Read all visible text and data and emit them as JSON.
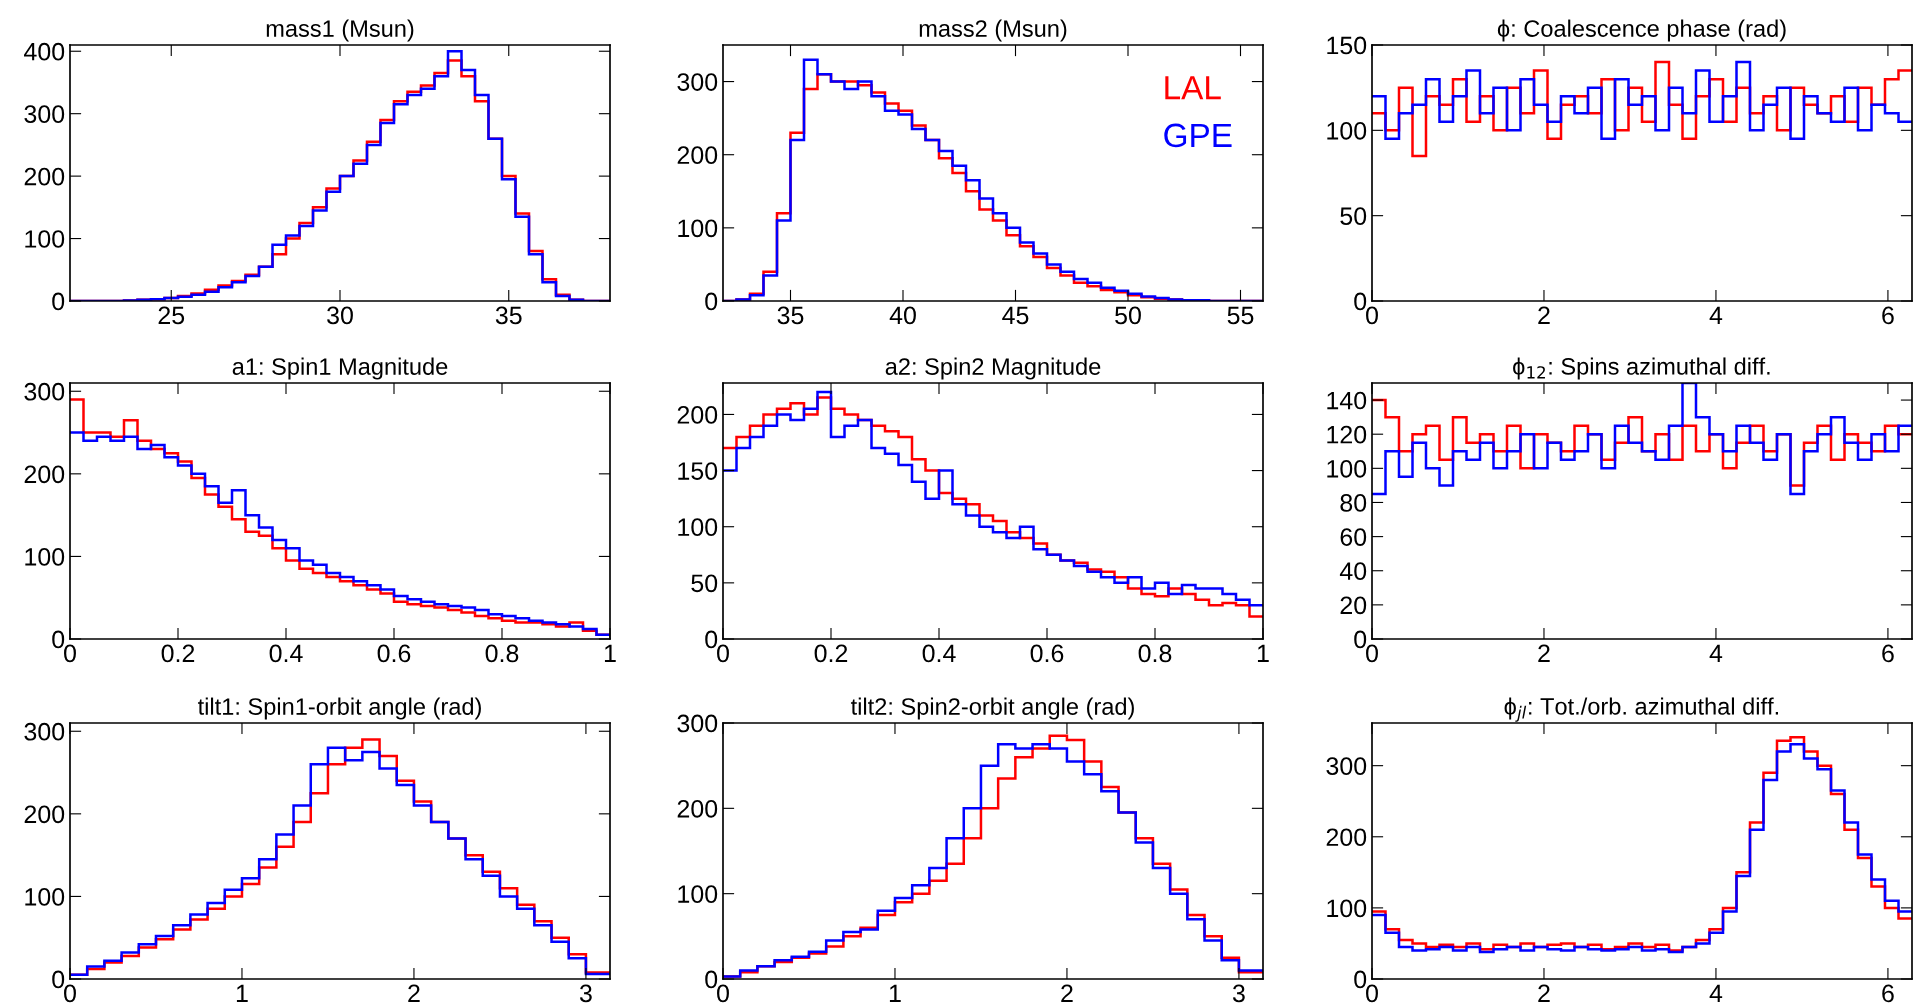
{
  "chart_data": [
    {
      "type": "histogram",
      "title": "mass1 (Msun)",
      "bins": [
        22,
        22.4,
        22.8,
        23.2,
        23.6,
        24,
        24.4,
        24.8,
        25.2,
        25.6,
        26,
        26.4,
        26.8,
        27.2,
        27.6,
        28,
        28.4,
        28.8,
        29.2,
        29.6,
        30,
        30.4,
        30.8,
        31.2,
        31.6,
        32,
        32.4,
        32.8,
        33.2,
        33.6,
        34,
        34.4,
        34.8,
        35.2,
        35.6,
        36,
        36.4,
        36.8,
        37.2,
        37.6,
        38
      ],
      "xlim": [
        22,
        38
      ],
      "xticks": [
        25,
        30,
        35
      ],
      "ylim": [
        0,
        410
      ],
      "yticks": [
        0,
        100,
        200,
        300,
        400
      ],
      "series": [
        {
          "color": "#ff0000",
          "values": [
            0,
            0,
            0,
            0,
            1,
            2,
            3,
            5,
            8,
            12,
            18,
            25,
            32,
            42,
            55,
            75,
            100,
            125,
            150,
            180,
            200,
            225,
            255,
            290,
            320,
            335,
            345,
            365,
            385,
            360,
            320,
            260,
            200,
            140,
            80,
            35,
            10,
            2,
            0,
            0
          ]
        },
        {
          "color": "#0000ff",
          "values": [
            0,
            0,
            0,
            0,
            1,
            2,
            3,
            5,
            7,
            10,
            15,
            22,
            30,
            40,
            55,
            90,
            105,
            120,
            145,
            175,
            200,
            220,
            250,
            285,
            315,
            330,
            340,
            360,
            400,
            370,
            330,
            260,
            195,
            135,
            75,
            30,
            8,
            2,
            0,
            0
          ]
        }
      ]
    },
    {
      "type": "histogram",
      "title": "mass2 (Msun)",
      "bins": [
        32,
        32.6,
        33.2,
        33.8,
        34.4,
        35,
        35.6,
        36.2,
        36.8,
        37.4,
        38,
        38.6,
        39.2,
        39.8,
        40.4,
        41,
        41.6,
        42.2,
        42.8,
        43.4,
        44,
        44.6,
        45.2,
        45.8,
        46.4,
        47,
        47.6,
        48.2,
        48.8,
        49.4,
        50,
        50.6,
        51.2,
        51.8,
        52.4,
        53,
        53.6,
        54.2,
        54.8,
        55.4,
        56
      ],
      "xlim": [
        32,
        56
      ],
      "xticks": [
        35,
        40,
        45,
        50,
        55
      ],
      "ylim": [
        0,
        350
      ],
      "yticks": [
        0,
        100,
        200,
        300
      ],
      "legend": "top right",
      "series": [
        {
          "name": "LAL",
          "color": "#ff0000",
          "values": [
            0,
            2,
            10,
            40,
            120,
            230,
            290,
            310,
            300,
            300,
            295,
            285,
            270,
            260,
            240,
            220,
            195,
            175,
            150,
            125,
            110,
            90,
            75,
            60,
            45,
            35,
            25,
            20,
            15,
            12,
            8,
            5,
            3,
            2,
            1,
            1,
            0,
            0,
            0,
            0
          ]
        },
        {
          "name": "GPE",
          "color": "#0000ff",
          "values": [
            0,
            2,
            8,
            35,
            110,
            220,
            330,
            310,
            300,
            290,
            300,
            280,
            260,
            255,
            235,
            220,
            205,
            185,
            165,
            140,
            120,
            100,
            80,
            65,
            50,
            40,
            30,
            25,
            18,
            14,
            10,
            6,
            4,
            2,
            1,
            1,
            0,
            0,
            0,
            0
          ]
        }
      ]
    },
    {
      "type": "histogram",
      "title": "ϕ: Coalescence phase (rad)",
      "bins": [
        0,
        0.157,
        0.314,
        0.471,
        0.628,
        0.785,
        0.942,
        1.099,
        1.256,
        1.413,
        1.57,
        1.727,
        1.884,
        2.041,
        2.198,
        2.355,
        2.512,
        2.669,
        2.826,
        2.983,
        3.14,
        3.297,
        3.454,
        3.611,
        3.768,
        3.925,
        4.082,
        4.239,
        4.396,
        4.553,
        4.71,
        4.867,
        5.024,
        5.181,
        5.338,
        5.495,
        5.652,
        5.809,
        5.966,
        6.123,
        6.28
      ],
      "xlim": [
        0,
        6.28
      ],
      "xticks": [
        0,
        2,
        4,
        6
      ],
      "ylim": [
        0,
        150
      ],
      "yticks": [
        0,
        50,
        100,
        150
      ],
      "series": [
        {
          "color": "#ff0000",
          "values": [
            110,
            100,
            125,
            85,
            120,
            115,
            130,
            105,
            120,
            100,
            125,
            110,
            135,
            95,
            115,
            120,
            110,
            130,
            100,
            125,
            105,
            140,
            115,
            95,
            120,
            130,
            105,
            125,
            110,
            120,
            100,
            125,
            115,
            110,
            120,
            105,
            125,
            115,
            130,
            135
          ]
        },
        {
          "color": "#0000ff",
          "values": [
            120,
            95,
            110,
            115,
            130,
            105,
            120,
            135,
            110,
            125,
            100,
            130,
            115,
            105,
            120,
            110,
            125,
            95,
            130,
            115,
            120,
            100,
            125,
            110,
            135,
            105,
            120,
            140,
            100,
            115,
            125,
            95,
            120,
            110,
            105,
            125,
            100,
            115,
            110,
            105
          ]
        }
      ]
    },
    {
      "type": "histogram",
      "title": "a1: Spin1 Magnitude",
      "bins": [
        0,
        0.025,
        0.05,
        0.075,
        0.1,
        0.125,
        0.15,
        0.175,
        0.2,
        0.225,
        0.25,
        0.275,
        0.3,
        0.325,
        0.35,
        0.375,
        0.4,
        0.425,
        0.45,
        0.475,
        0.5,
        0.525,
        0.55,
        0.575,
        0.6,
        0.625,
        0.65,
        0.675,
        0.7,
        0.725,
        0.75,
        0.775,
        0.8,
        0.825,
        0.85,
        0.875,
        0.9,
        0.925,
        0.95,
        0.975,
        1
      ],
      "xlim": [
        0,
        1
      ],
      "xticks": [
        0,
        0.2,
        0.4,
        0.6,
        0.8,
        1
      ],
      "ylim": [
        0,
        310
      ],
      "yticks": [
        0,
        100,
        200,
        300
      ],
      "series": [
        {
          "color": "#ff0000",
          "values": [
            290,
            250,
            250,
            245,
            265,
            240,
            230,
            225,
            215,
            195,
            175,
            160,
            145,
            130,
            125,
            110,
            95,
            85,
            80,
            75,
            70,
            65,
            60,
            55,
            45,
            42,
            40,
            38,
            35,
            32,
            28,
            25,
            22,
            20,
            20,
            18,
            15,
            20,
            10,
            5
          ]
        },
        {
          "color": "#0000ff",
          "values": [
            250,
            240,
            245,
            240,
            245,
            230,
            235,
            220,
            210,
            200,
            185,
            165,
            180,
            150,
            135,
            120,
            110,
            95,
            90,
            80,
            75,
            70,
            65,
            60,
            52,
            48,
            45,
            42,
            40,
            38,
            35,
            30,
            28,
            25,
            22,
            20,
            18,
            15,
            12,
            5
          ]
        }
      ]
    },
    {
      "type": "histogram",
      "title": "a2: Spin2 Magnitude",
      "bins": [
        0,
        0.025,
        0.05,
        0.075,
        0.1,
        0.125,
        0.15,
        0.175,
        0.2,
        0.225,
        0.25,
        0.275,
        0.3,
        0.325,
        0.35,
        0.375,
        0.4,
        0.425,
        0.45,
        0.475,
        0.5,
        0.525,
        0.55,
        0.575,
        0.6,
        0.625,
        0.65,
        0.675,
        0.7,
        0.725,
        0.75,
        0.775,
        0.8,
        0.825,
        0.85,
        0.875,
        0.9,
        0.925,
        0.95,
        0.975,
        1
      ],
      "xlim": [
        0,
        1
      ],
      "xticks": [
        0,
        0.2,
        0.4,
        0.6,
        0.8,
        1
      ],
      "ylim": [
        0,
        228
      ],
      "yticks": [
        0,
        50,
        100,
        150,
        200
      ],
      "series": [
        {
          "color": "#ff0000",
          "values": [
            170,
            180,
            190,
            200,
            205,
            210,
            200,
            215,
            205,
            200,
            195,
            190,
            185,
            180,
            160,
            150,
            130,
            125,
            120,
            110,
            105,
            95,
            90,
            85,
            75,
            70,
            68,
            62,
            60,
            55,
            45,
            40,
            38,
            45,
            40,
            35,
            30,
            32,
            30,
            20
          ]
        },
        {
          "color": "#0000ff",
          "values": [
            150,
            170,
            180,
            190,
            200,
            195,
            205,
            220,
            180,
            190,
            195,
            170,
            165,
            155,
            140,
            125,
            150,
            120,
            110,
            100,
            95,
            90,
            100,
            80,
            75,
            70,
            65,
            60,
            55,
            50,
            55,
            45,
            50,
            40,
            48,
            45,
            45,
            40,
            35,
            30
          ]
        }
      ]
    },
    {
      "type": "histogram",
      "title": "ϕ$_{12}$: Spins azimuthal diff.",
      "bins": [
        0,
        0.157,
        0.314,
        0.471,
        0.628,
        0.785,
        0.942,
        1.099,
        1.256,
        1.413,
        1.57,
        1.727,
        1.884,
        2.041,
        2.198,
        2.355,
        2.512,
        2.669,
        2.826,
        2.983,
        3.14,
        3.297,
        3.454,
        3.611,
        3.768,
        3.925,
        4.082,
        4.239,
        4.396,
        4.553,
        4.71,
        4.867,
        5.024,
        5.181,
        5.338,
        5.495,
        5.652,
        5.809,
        5.966,
        6.123,
        6.28
      ],
      "xlim": [
        0,
        6.28
      ],
      "xticks": [
        0,
        2,
        4,
        6
      ],
      "ylim": [
        0,
        150
      ],
      "yticks": [
        0,
        20,
        40,
        60,
        80,
        100,
        120,
        140
      ],
      "series": [
        {
          "color": "#ff0000",
          "values": [
            140,
            130,
            110,
            120,
            125,
            105,
            130,
            115,
            120,
            110,
            125,
            100,
            120,
            115,
            110,
            125,
            120,
            105,
            115,
            130,
            110,
            120,
            105,
            125,
            110,
            120,
            100,
            115,
            125,
            110,
            120,
            90,
            115,
            125,
            105,
            120,
            115,
            110,
            125,
            120
          ]
        },
        {
          "color": "#0000ff",
          "values": [
            85,
            110,
            95,
            115,
            100,
            90,
            110,
            105,
            115,
            100,
            110,
            120,
            100,
            115,
            105,
            110,
            120,
            100,
            125,
            115,
            110,
            105,
            125,
            150,
            130,
            120,
            110,
            125,
            115,
            105,
            120,
            85,
            110,
            120,
            130,
            115,
            105,
            120,
            110,
            125
          ]
        }
      ]
    },
    {
      "type": "histogram",
      "title": "tilt1: Spin1-orbit angle (rad)",
      "bins": [
        0,
        0.1,
        0.2,
        0.3,
        0.4,
        0.5,
        0.6,
        0.7,
        0.8,
        0.9,
        1,
        1.1,
        1.2,
        1.3,
        1.4,
        1.5,
        1.6,
        1.7,
        1.8,
        1.9,
        2,
        2.1,
        2.2,
        2.3,
        2.4,
        2.5,
        2.6,
        2.7,
        2.8,
        2.9,
        3,
        3.14
      ],
      "xlim": [
        0,
        3.14
      ],
      "xticks": [
        0,
        1,
        2,
        3
      ],
      "ylim": [
        0,
        310
      ],
      "yticks": [
        0,
        100,
        200,
        300
      ],
      "series": [
        {
          "color": "#ff0000",
          "values": [
            5,
            12,
            20,
            28,
            38,
            48,
            60,
            72,
            85,
            100,
            115,
            135,
            160,
            190,
            225,
            260,
            280,
            290,
            270,
            240,
            215,
            190,
            170,
            150,
            130,
            110,
            90,
            70,
            50,
            30,
            8
          ]
        },
        {
          "color": "#0000ff",
          "values": [
            5,
            15,
            22,
            32,
            42,
            52,
            65,
            78,
            92,
            108,
            122,
            145,
            175,
            210,
            260,
            280,
            265,
            275,
            255,
            235,
            210,
            190,
            170,
            145,
            125,
            100,
            85,
            65,
            45,
            25,
            6
          ]
        }
      ]
    },
    {
      "type": "histogram",
      "title": "tilt2: Spin2-orbit angle (rad)",
      "bins": [
        0,
        0.1,
        0.2,
        0.3,
        0.4,
        0.5,
        0.6,
        0.7,
        0.8,
        0.9,
        1,
        1.1,
        1.2,
        1.3,
        1.4,
        1.5,
        1.6,
        1.7,
        1.8,
        1.9,
        2,
        2.1,
        2.2,
        2.3,
        2.4,
        2.5,
        2.6,
        2.7,
        2.8,
        2.9,
        3,
        3.14
      ],
      "xlim": [
        0,
        3.14
      ],
      "xticks": [
        0,
        1,
        2,
        3
      ],
      "ylim": [
        0,
        300
      ],
      "yticks": [
        0,
        100,
        200,
        300
      ],
      "series": [
        {
          "color": "#ff0000",
          "values": [
            3,
            8,
            15,
            20,
            25,
            30,
            38,
            50,
            60,
            75,
            90,
            100,
            115,
            135,
            165,
            200,
            235,
            260,
            270,
            285,
            280,
            255,
            225,
            195,
            165,
            135,
            105,
            75,
            50,
            25,
            8
          ]
        },
        {
          "color": "#0000ff",
          "values": [
            3,
            10,
            15,
            22,
            26,
            32,
            45,
            55,
            58,
            80,
            95,
            110,
            130,
            165,
            200,
            250,
            275,
            270,
            275,
            270,
            255,
            240,
            220,
            195,
            160,
            130,
            100,
            70,
            45,
            22,
            10
          ]
        }
      ]
    },
    {
      "type": "histogram",
      "title": "ϕ$_{jl}$: Tot./orb. azimuthal diff.",
      "bins": [
        0,
        0.157,
        0.314,
        0.471,
        0.628,
        0.785,
        0.942,
        1.099,
        1.256,
        1.413,
        1.57,
        1.727,
        1.884,
        2.041,
        2.198,
        2.355,
        2.512,
        2.669,
        2.826,
        2.983,
        3.14,
        3.297,
        3.454,
        3.611,
        3.768,
        3.925,
        4.082,
        4.239,
        4.396,
        4.553,
        4.71,
        4.867,
        5.024,
        5.181,
        5.338,
        5.495,
        5.652,
        5.809,
        5.966,
        6.123,
        6.28
      ],
      "xlim": [
        0,
        6.28
      ],
      "xticks": [
        0,
        2,
        4,
        6
      ],
      "ylim": [
        0,
        360
      ],
      "yticks": [
        0,
        100,
        200,
        300
      ],
      "series": [
        {
          "color": "#ff0000",
          "values": [
            95,
            70,
            55,
            50,
            45,
            48,
            45,
            50,
            42,
            48,
            45,
            50,
            45,
            48,
            50,
            45,
            48,
            42,
            45,
            50,
            45,
            48,
            40,
            45,
            55,
            70,
            100,
            150,
            220,
            290,
            335,
            340,
            320,
            300,
            260,
            210,
            170,
            130,
            100,
            85
          ]
        },
        {
          "color": "#0000ff",
          "values": [
            90,
            65,
            45,
            40,
            42,
            45,
            40,
            45,
            38,
            42,
            45,
            40,
            45,
            42,
            40,
            45,
            42,
            40,
            42,
            45,
            40,
            42,
            38,
            45,
            50,
            65,
            95,
            145,
            210,
            280,
            320,
            330,
            310,
            295,
            265,
            220,
            175,
            140,
            110,
            95
          ]
        }
      ]
    }
  ]
}
